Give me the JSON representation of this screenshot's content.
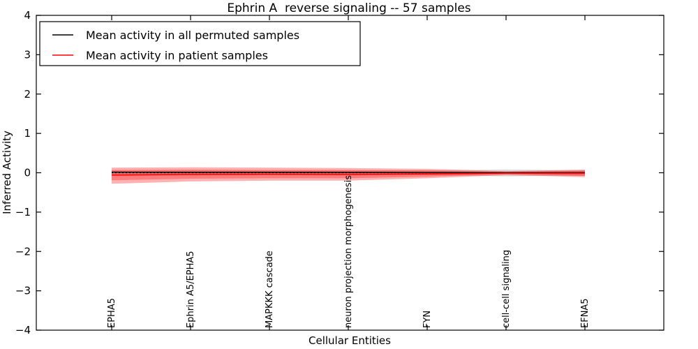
{
  "chart_data": {
    "type": "line",
    "title": "Ephrin A  reverse signaling -- 57 samples",
    "xlabel": "Cellular Entities",
    "ylabel": "Inferred Activity",
    "ylim": [
      -4,
      4
    ],
    "y_ticks": [
      4,
      3,
      2,
      1,
      0,
      -1,
      -2,
      -3,
      -4
    ],
    "grid": false,
    "legend_position": "upper left",
    "categories": [
      "EPHA5",
      "Ephrin A5/EPHA5",
      "MAPKKK cascade",
      "neuron projection morphogenesis",
      "FYN",
      "cell-cell signaling",
      "EFNA5"
    ],
    "series": [
      {
        "name": "Mean activity in all permuted samples",
        "color": "#000000",
        "values": [
          0.015,
          0.01,
          0.01,
          0.008,
          0.005,
          0.002,
          0.002
        ]
      },
      {
        "name": "Mean activity in patient samples",
        "color": "#ff0000",
        "values": [
          -0.06,
          -0.045,
          -0.04,
          -0.045,
          -0.028,
          -0.01,
          -0.012
        ]
      }
    ],
    "bands": [
      {
        "name": "permuted-samples-std-band",
        "color": "#808080",
        "opacity": 0.3,
        "upper": [
          0.05,
          0.05,
          0.05,
          0.05,
          0.06,
          0.08,
          0.065
        ],
        "lower": [
          -0.05,
          -0.05,
          -0.05,
          -0.05,
          -0.06,
          -0.09,
          -0.07
        ]
      },
      {
        "name": "patient-samples-outer-band",
        "color": "#ff0000",
        "opacity": 0.3,
        "upper": [
          0.13,
          0.14,
          0.13,
          0.12,
          0.1,
          0.04,
          0.08
        ],
        "lower": [
          -0.28,
          -0.22,
          -0.2,
          -0.2,
          -0.14,
          -0.06,
          -0.11
        ]
      },
      {
        "name": "patient-samples-inner-band",
        "color": "#ff0000",
        "opacity": 0.3,
        "upper": [
          0.07,
          0.08,
          0.07,
          0.07,
          0.06,
          0.02,
          0.05
        ],
        "lower": [
          -0.19,
          -0.15,
          -0.14,
          -0.14,
          -0.1,
          -0.03,
          -0.08
        ]
      }
    ],
    "zero_line": {
      "value": 0,
      "style": "dotted",
      "color": "#000000"
    }
  },
  "legend": {
    "entries": [
      {
        "label": "Mean activity in all permuted samples",
        "color": "#000000"
      },
      {
        "label": "Mean activity in patient samples",
        "color": "#ff0000"
      }
    ]
  },
  "frame_color": "#000000",
  "background_color": "#ffffff"
}
